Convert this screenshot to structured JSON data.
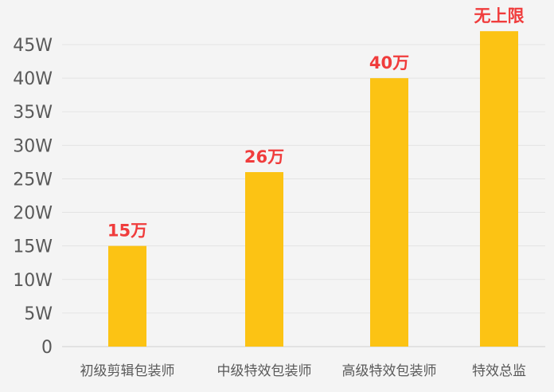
{
  "chart_data": {
    "type": "bar",
    "categories": [
      "初级剪辑包装师",
      "中级特效包装师",
      "高级特效包装师",
      "特效总监"
    ],
    "values": [
      15,
      26,
      40,
      47
    ],
    "data_labels": [
      "15万",
      "26万",
      "40万",
      "无上限"
    ],
    "ylim": [
      0,
      45
    ],
    "yticks": [
      0,
      5,
      10,
      15,
      20,
      25,
      30,
      35,
      40,
      45
    ],
    "ytick_labels": [
      "0",
      "5W",
      "10W",
      "15W",
      "20W",
      "25W",
      "30W",
      "35W",
      "40W",
      "45W"
    ],
    "title": "",
    "xlabel": "",
    "ylabel": "",
    "grid": true,
    "legend": "none",
    "colors": {
      "bar": "#fcc314",
      "label": "#f03c3c",
      "grid": "#e3e3e3",
      "tick_text": "#595959",
      "background": "#f4f4f4"
    }
  }
}
